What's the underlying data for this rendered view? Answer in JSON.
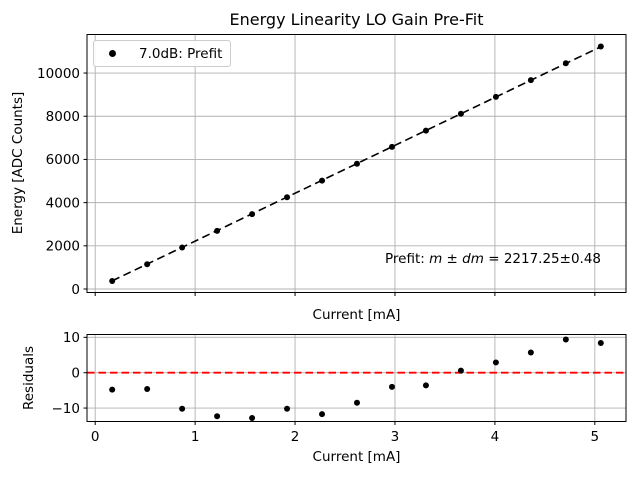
{
  "chart_data": [
    {
      "type": "scatter",
      "title": "Energy Linearity LO Gain Pre-Fit",
      "xlabel": "Current [mA]",
      "ylabel": "Energy [ADC Counts]",
      "legend": [
        {
          "label": "7.0dB: Prefit",
          "marker": "black-dot"
        }
      ],
      "legend_position": "upper left",
      "annotation": {
        "text": "Prefit: m ± dm = 2217.25±0.48",
        "parts": {
          "prefix": "Prefit: ",
          "m": "m",
          "pm": " ± ",
          "dm": "dm",
          "eq": " = ",
          "value": "2217.25±0.48"
        }
      },
      "x": [
        0.17,
        0.52,
        0.87,
        1.22,
        1.57,
        1.92,
        2.27,
        2.62,
        2.97,
        3.31,
        3.66,
        4.01,
        4.36,
        4.71,
        5.06
      ],
      "y": [
        372,
        1148,
        1919,
        2693,
        3468,
        4247,
        5021,
        5801,
        6581,
        7335,
        8116,
        8894,
        9673,
        10453,
        11228
      ],
      "fit_line": {
        "slope": 2217.25,
        "slope_err": 0.48,
        "intercept": 0,
        "x_start": 0.17,
        "x_end": 5.06,
        "style": "dashed",
        "color": "#000000"
      },
      "xlim": [
        -0.082,
        5.312
      ],
      "ylim": [
        -162,
        11785
      ],
      "xticks": [
        0,
        1,
        2,
        3,
        4,
        5
      ],
      "xticklabels": [],
      "yticks": [
        0,
        2000,
        4000,
        6000,
        8000,
        10000
      ],
      "yticklabels": [
        "0",
        "2000",
        "4000",
        "6000",
        "8000",
        "10000"
      ],
      "grid": true,
      "marker_color": "#000000"
    },
    {
      "type": "scatter",
      "title": "",
      "xlabel": "Current [mA]",
      "ylabel": "Residuals",
      "x": [
        0.17,
        0.52,
        0.87,
        1.22,
        1.57,
        1.92,
        2.27,
        2.62,
        2.97,
        3.31,
        3.66,
        4.01,
        4.36,
        4.71,
        5.06
      ],
      "y": [
        -4.8,
        -4.6,
        -10.2,
        -12.3,
        -12.8,
        -10.2,
        -11.7,
        -8.5,
        -4.0,
        -3.6,
        0.6,
        2.9,
        5.7,
        9.4,
        8.4
      ],
      "refline": {
        "y": 0,
        "color": "#ff0000",
        "style": "dashed"
      },
      "xlim": [
        -0.082,
        5.312
      ],
      "ylim": [
        -13.8,
        10.8
      ],
      "xticks": [
        0,
        1,
        2,
        3,
        4,
        5
      ],
      "xticklabels": [
        "0",
        "1",
        "2",
        "3",
        "4",
        "5"
      ],
      "yticks": [
        -10,
        0,
        10
      ],
      "yticklabels": [
        "−10",
        "0",
        "10"
      ],
      "grid": true,
      "marker_color": "#000000"
    }
  ],
  "colors": {
    "grid": "#b0b0b0",
    "spine": "#000000",
    "text": "#000000",
    "marker": "#000000",
    "fit_line": "#000000",
    "refline": "#ff0000",
    "legend_border": "#cccccc",
    "background": "#ffffff"
  }
}
